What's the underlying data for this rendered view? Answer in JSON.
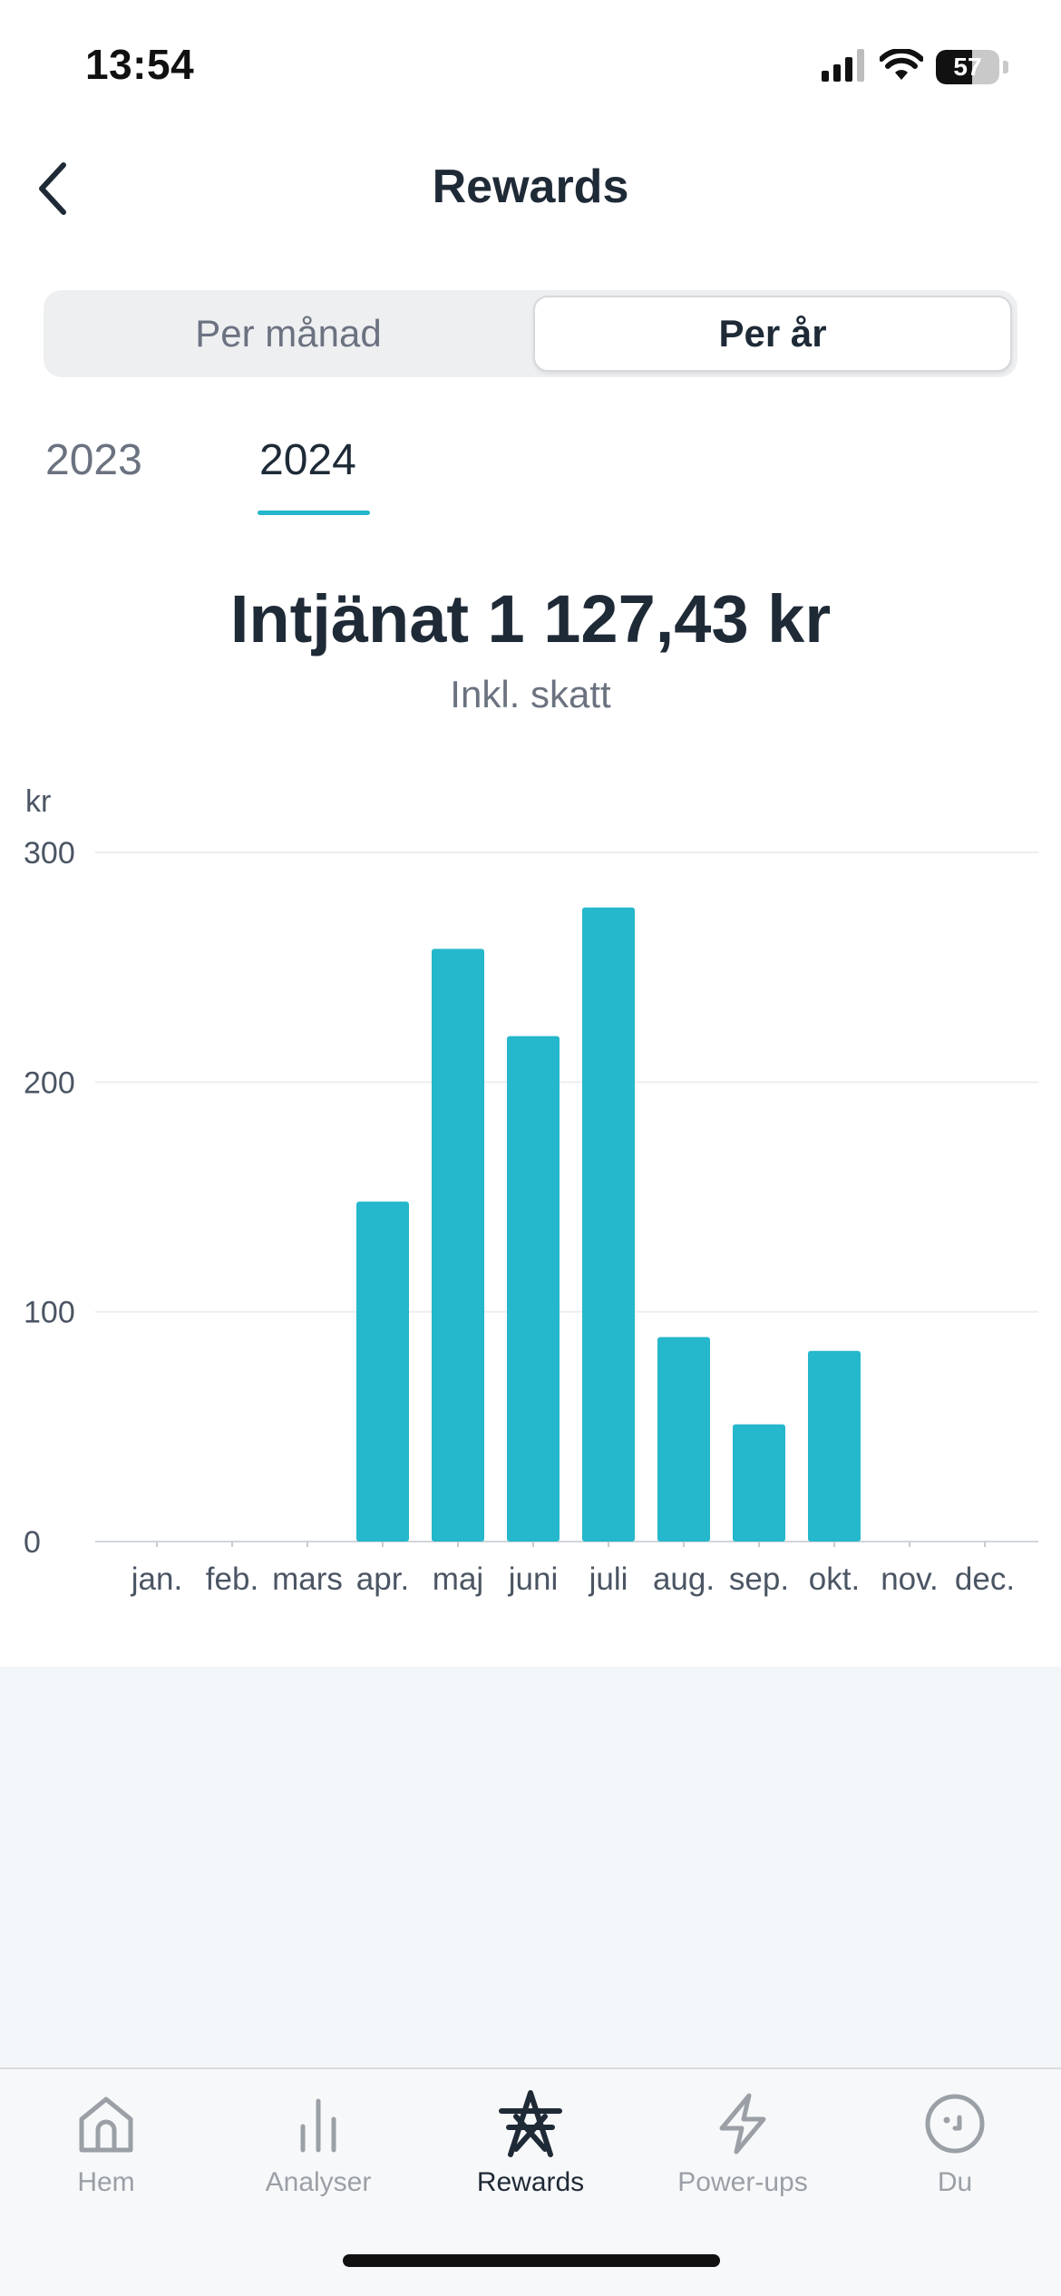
{
  "status_bar": {
    "time": "13:54",
    "battery_level": "57",
    "battery_fraction": 0.57,
    "icons": [
      "signal-icon",
      "wifi-icon",
      "battery-icon"
    ]
  },
  "header": {
    "title": "Rewards",
    "back_icon": "chevron-left-icon"
  },
  "segmented_control": {
    "options": [
      "Per månad",
      "Per år"
    ],
    "selected": "Per år"
  },
  "year_tabs": {
    "items": [
      "2023",
      "2024"
    ],
    "selected": "2024"
  },
  "summary": {
    "title": "Intjänat 1 127,43 kr",
    "subtitle": "Inkl. skatt"
  },
  "colors": {
    "accent": "#25b7cb",
    "text_primary": "#1f2a37",
    "text_secondary": "#6b7280",
    "gray_bg": "#f3f6f8"
  },
  "chart_data": {
    "type": "bar",
    "ylabel": "kr",
    "ylim": [
      0,
      300
    ],
    "yticks": [
      0,
      100,
      200,
      300
    ],
    "grid": true,
    "categories": [
      "jan.",
      "feb.",
      "mars",
      "apr.",
      "maj",
      "juni",
      "juli",
      "aug.",
      "sep.",
      "okt.",
      "nov.",
      "dec."
    ],
    "values": [
      0,
      0,
      0,
      148,
      258,
      220,
      276,
      89,
      51,
      83,
      0,
      0
    ],
    "color": "#25b7cb"
  },
  "tab_bar": {
    "items": [
      {
        "label": "Hem",
        "icon": "home-icon"
      },
      {
        "label": "Analyser",
        "icon": "bar-chart-icon"
      },
      {
        "label": "Rewards",
        "icon": "power-tower-icon"
      },
      {
        "label": "Power-ups",
        "icon": "lightning-icon"
      },
      {
        "label": "Du",
        "icon": "face-icon"
      }
    ],
    "selected": "Rewards"
  }
}
